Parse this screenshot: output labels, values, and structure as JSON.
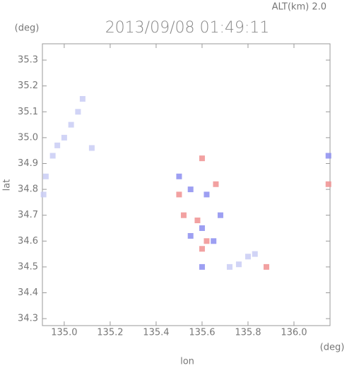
{
  "chart_data": {
    "type": "scatter",
    "title": "2013/09/08 01:49:11",
    "subtitle": "ALT(km) 2.0",
    "x_label": "lon",
    "y_label": "lat",
    "x_unit": "(deg)",
    "y_unit": "(deg)",
    "xlim": [
      134.905,
      136.157
    ],
    "ylim": [
      34.273,
      35.363
    ],
    "xticks": [
      {
        "value": 135,
        "label": "135.0"
      },
      135.2,
      135.4,
      135.6,
      135.8,
      {
        "value": 136,
        "label": "136.0"
      }
    ],
    "yticks": [
      34.3,
      34.4,
      34.5,
      34.6,
      34.7,
      34.8,
      34.9,
      {
        "value": 35,
        "label": "35.0"
      },
      35.1,
      35.2,
      35.3
    ],
    "series": [
      {
        "color": "#c9cdf5",
        "x": [
          134.95,
          134.97,
          135.0,
          135.03,
          135.06,
          135.08,
          134.92,
          134.91,
          135.12,
          135.8,
          135.76,
          135.83,
          135.72
        ],
        "y": [
          34.93,
          34.97,
          35.0,
          35.05,
          35.1,
          35.15,
          34.85,
          34.78,
          34.96,
          34.54,
          34.51,
          34.55,
          34.5
        ]
      },
      {
        "color": "#8c8ef0",
        "x": [
          135.5,
          135.55,
          135.62,
          135.6,
          135.65,
          135.55,
          135.6,
          135.68,
          136.15
        ],
        "y": [
          34.85,
          34.8,
          34.78,
          34.65,
          34.6,
          34.62,
          34.5,
          34.7,
          34.93
        ]
      },
      {
        "color": "#f09090",
        "x": [
          135.58,
          135.62,
          135.52,
          135.6,
          135.66,
          135.5,
          135.88,
          136.15,
          135.6
        ],
        "y": [
          34.68,
          34.6,
          34.7,
          34.57,
          34.82,
          34.78,
          34.5,
          34.82,
          34.92
        ]
      }
    ]
  }
}
